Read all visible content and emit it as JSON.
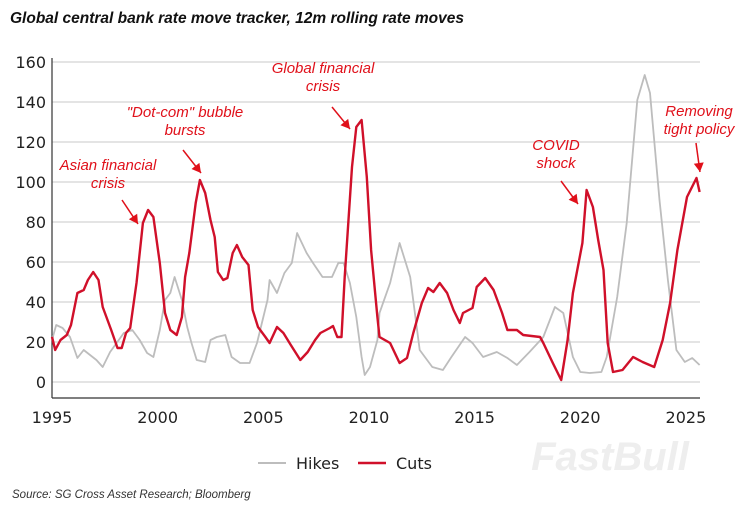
{
  "chart_data": {
    "type": "line",
    "title": "Global central bank rate move tracker, 12m rolling rate moves",
    "source": "Source: SG Cross Asset Research; Bloomberg",
    "xlim": [
      1995,
      2025.7
    ],
    "ylim": [
      -8,
      160
    ],
    "x_ticks": [
      1995,
      2000,
      2005,
      2010,
      2015,
      2020,
      2025
    ],
    "y_ticks": [
      0,
      20,
      40,
      60,
      80,
      100,
      120,
      140,
      160
    ],
    "grid": "horizontal",
    "legend": "bottom",
    "watermark": "FastBull",
    "series": [
      {
        "name": "Hikes",
        "color": "#bdbdbd",
        "points": [
          [
            1995.0,
            21
          ],
          [
            1995.2,
            28.5
          ],
          [
            1995.5,
            27
          ],
          [
            1995.85,
            22.5
          ],
          [
            1996.2,
            12
          ],
          [
            1996.5,
            16
          ],
          [
            1997.1,
            11
          ],
          [
            1997.4,
            7.5
          ],
          [
            1997.75,
            15
          ],
          [
            1998.4,
            24.5
          ],
          [
            1998.8,
            26
          ],
          [
            1999.15,
            21
          ],
          [
            1999.5,
            14.5
          ],
          [
            1999.8,
            12.5
          ],
          [
            2000.1,
            26
          ],
          [
            2000.35,
            41
          ],
          [
            2000.6,
            44.5
          ],
          [
            2000.8,
            52.5
          ],
          [
            2001.15,
            41
          ],
          [
            2001.4,
            27.5
          ],
          [
            2001.6,
            19.5
          ],
          [
            2001.85,
            11
          ],
          [
            2002.25,
            10
          ],
          [
            2002.5,
            21
          ],
          [
            2002.8,
            22.5
          ],
          [
            2003.2,
            23.5
          ],
          [
            2003.5,
            12.5
          ],
          [
            2003.9,
            9.5
          ],
          [
            2004.35,
            9.5
          ],
          [
            2004.7,
            19.5
          ],
          [
            2005.2,
            41
          ],
          [
            2005.3,
            51
          ],
          [
            2005.65,
            44.5
          ],
          [
            2006.0,
            54.5
          ],
          [
            2006.35,
            59.5
          ],
          [
            2006.6,
            74.5
          ],
          [
            2007.05,
            64.5
          ],
          [
            2007.35,
            59.5
          ],
          [
            2007.8,
            52.5
          ],
          [
            2008.25,
            52.5
          ],
          [
            2008.55,
            59.5
          ],
          [
            2008.8,
            59.5
          ],
          [
            2009.1,
            49.5
          ],
          [
            2009.4,
            32.5
          ],
          [
            2009.65,
            12.5
          ],
          [
            2009.8,
            3.5
          ],
          [
            2010.05,
            7.5
          ],
          [
            2010.4,
            21
          ],
          [
            2010.5,
            34.5
          ],
          [
            2011.0,
            49.5
          ],
          [
            2011.45,
            69.5
          ],
          [
            2011.95,
            52.5
          ],
          [
            2012.4,
            16
          ],
          [
            2013.0,
            7.5
          ],
          [
            2013.5,
            6
          ],
          [
            2013.9,
            12.5
          ],
          [
            2014.55,
            22.5
          ],
          [
            2014.9,
            19.5
          ],
          [
            2015.4,
            12.5
          ],
          [
            2016.05,
            15
          ],
          [
            2016.55,
            12
          ],
          [
            2017.0,
            8.5
          ],
          [
            2017.6,
            15
          ],
          [
            2018.25,
            22.5
          ],
          [
            2018.8,
            37.5
          ],
          [
            2019.2,
            34.5
          ],
          [
            2019.65,
            12.5
          ],
          [
            2020.0,
            5
          ],
          [
            2020.45,
            4.5
          ],
          [
            2021.0,
            5
          ],
          [
            2021.25,
            12.5
          ],
          [
            2021.75,
            42.5
          ],
          [
            2022.2,
            79.5
          ],
          [
            2022.7,
            141
          ],
          [
            2023.05,
            153.5
          ],
          [
            2023.3,
            144.5
          ],
          [
            2023.75,
            91
          ],
          [
            2024.15,
            51
          ],
          [
            2024.55,
            16
          ],
          [
            2024.95,
            10
          ],
          [
            2025.3,
            12
          ],
          [
            2025.65,
            8.5
          ]
        ]
      },
      {
        "name": "Cuts",
        "color": "#d0102a",
        "points": [
          [
            1995.0,
            22.6
          ],
          [
            1995.15,
            16
          ],
          [
            1995.4,
            21
          ],
          [
            1995.7,
            23.5
          ],
          [
            1995.9,
            28.5
          ],
          [
            1996.2,
            44.5
          ],
          [
            1996.5,
            46
          ],
          [
            1996.7,
            51
          ],
          [
            1996.95,
            55
          ],
          [
            1997.2,
            51
          ],
          [
            1997.4,
            37.5
          ],
          [
            1997.8,
            26
          ],
          [
            1998.1,
            17
          ],
          [
            1998.3,
            17
          ],
          [
            1998.5,
            24.5
          ],
          [
            1998.7,
            27
          ],
          [
            1999.0,
            49.5
          ],
          [
            1999.3,
            79.5
          ],
          [
            1999.55,
            86
          ],
          [
            1999.8,
            82.5
          ],
          [
            2000.1,
            59.5
          ],
          [
            2000.35,
            34.5
          ],
          [
            2000.6,
            26
          ],
          [
            2000.9,
            23.5
          ],
          [
            2001.15,
            32.5
          ],
          [
            2001.3,
            52.5
          ],
          [
            2001.5,
            64.5
          ],
          [
            2001.8,
            89.5
          ],
          [
            2002.0,
            101
          ],
          [
            2002.25,
            94.5
          ],
          [
            2002.5,
            81
          ],
          [
            2002.7,
            72.5
          ],
          [
            2002.85,
            55
          ],
          [
            2003.1,
            51
          ],
          [
            2003.3,
            52
          ],
          [
            2003.55,
            64.5
          ],
          [
            2003.75,
            68.5
          ],
          [
            2004.0,
            62.5
          ],
          [
            2004.3,
            58.5
          ],
          [
            2004.5,
            36
          ],
          [
            2004.75,
            27.5
          ],
          [
            2005.1,
            22.5
          ],
          [
            2005.3,
            19.5
          ],
          [
            2005.65,
            27.5
          ],
          [
            2005.95,
            24.5
          ],
          [
            2006.3,
            18.5
          ],
          [
            2006.75,
            11
          ],
          [
            2007.1,
            15
          ],
          [
            2007.45,
            21
          ],
          [
            2007.7,
            24.5
          ],
          [
            2008.15,
            27
          ],
          [
            2008.3,
            28
          ],
          [
            2008.5,
            22.5
          ],
          [
            2008.7,
            22.5
          ],
          [
            2008.85,
            52.5
          ],
          [
            2009.2,
            107.5
          ],
          [
            2009.4,
            127.5
          ],
          [
            2009.65,
            131
          ],
          [
            2009.9,
            102.5
          ],
          [
            2010.1,
            66
          ],
          [
            2010.4,
            32.5
          ],
          [
            2010.5,
            22.5
          ],
          [
            2011.0,
            19.5
          ],
          [
            2011.45,
            9.5
          ],
          [
            2011.8,
            12
          ],
          [
            2012.1,
            24.5
          ],
          [
            2012.5,
            39.5
          ],
          [
            2012.8,
            47
          ],
          [
            2013.05,
            45
          ],
          [
            2013.35,
            49.5
          ],
          [
            2013.7,
            44.5
          ],
          [
            2014.0,
            36
          ],
          [
            2014.3,
            29.5
          ],
          [
            2014.45,
            34.5
          ],
          [
            2014.9,
            37
          ],
          [
            2015.1,
            47.5
          ],
          [
            2015.5,
            52
          ],
          [
            2015.9,
            46
          ],
          [
            2016.3,
            34.5
          ],
          [
            2016.55,
            26
          ],
          [
            2017.0,
            26
          ],
          [
            2017.3,
            23.5
          ],
          [
            2018.1,
            22.5
          ],
          [
            2018.25,
            19.5
          ],
          [
            2018.7,
            9.5
          ],
          [
            2019.1,
            1
          ],
          [
            2019.4,
            21
          ],
          [
            2019.65,
            44.5
          ],
          [
            2020.1,
            69.5
          ],
          [
            2020.3,
            96
          ],
          [
            2020.6,
            87.5
          ],
          [
            2020.85,
            71
          ],
          [
            2021.1,
            56
          ],
          [
            2021.3,
            19.5
          ],
          [
            2021.55,
            5
          ],
          [
            2022.0,
            6
          ],
          [
            2022.5,
            12.5
          ],
          [
            2022.95,
            10
          ],
          [
            2023.5,
            7.5
          ],
          [
            2023.9,
            21
          ],
          [
            2024.25,
            39.5
          ],
          [
            2024.6,
            66
          ],
          [
            2025.05,
            92.5
          ],
          [
            2025.5,
            102
          ],
          [
            2025.65,
            95
          ]
        ]
      }
    ],
    "annotations": [
      {
        "lines": [
          "Asian financial",
          "crisis"
        ]
      },
      {
        "lines": [
          "\"Dot-com\" bubble",
          "bursts"
        ]
      },
      {
        "lines": [
          "Global financial",
          "crisis"
        ]
      },
      {
        "lines": [
          "COVID",
          "shock"
        ]
      },
      {
        "lines": [
          "Removing",
          "tight policy"
        ]
      }
    ]
  }
}
